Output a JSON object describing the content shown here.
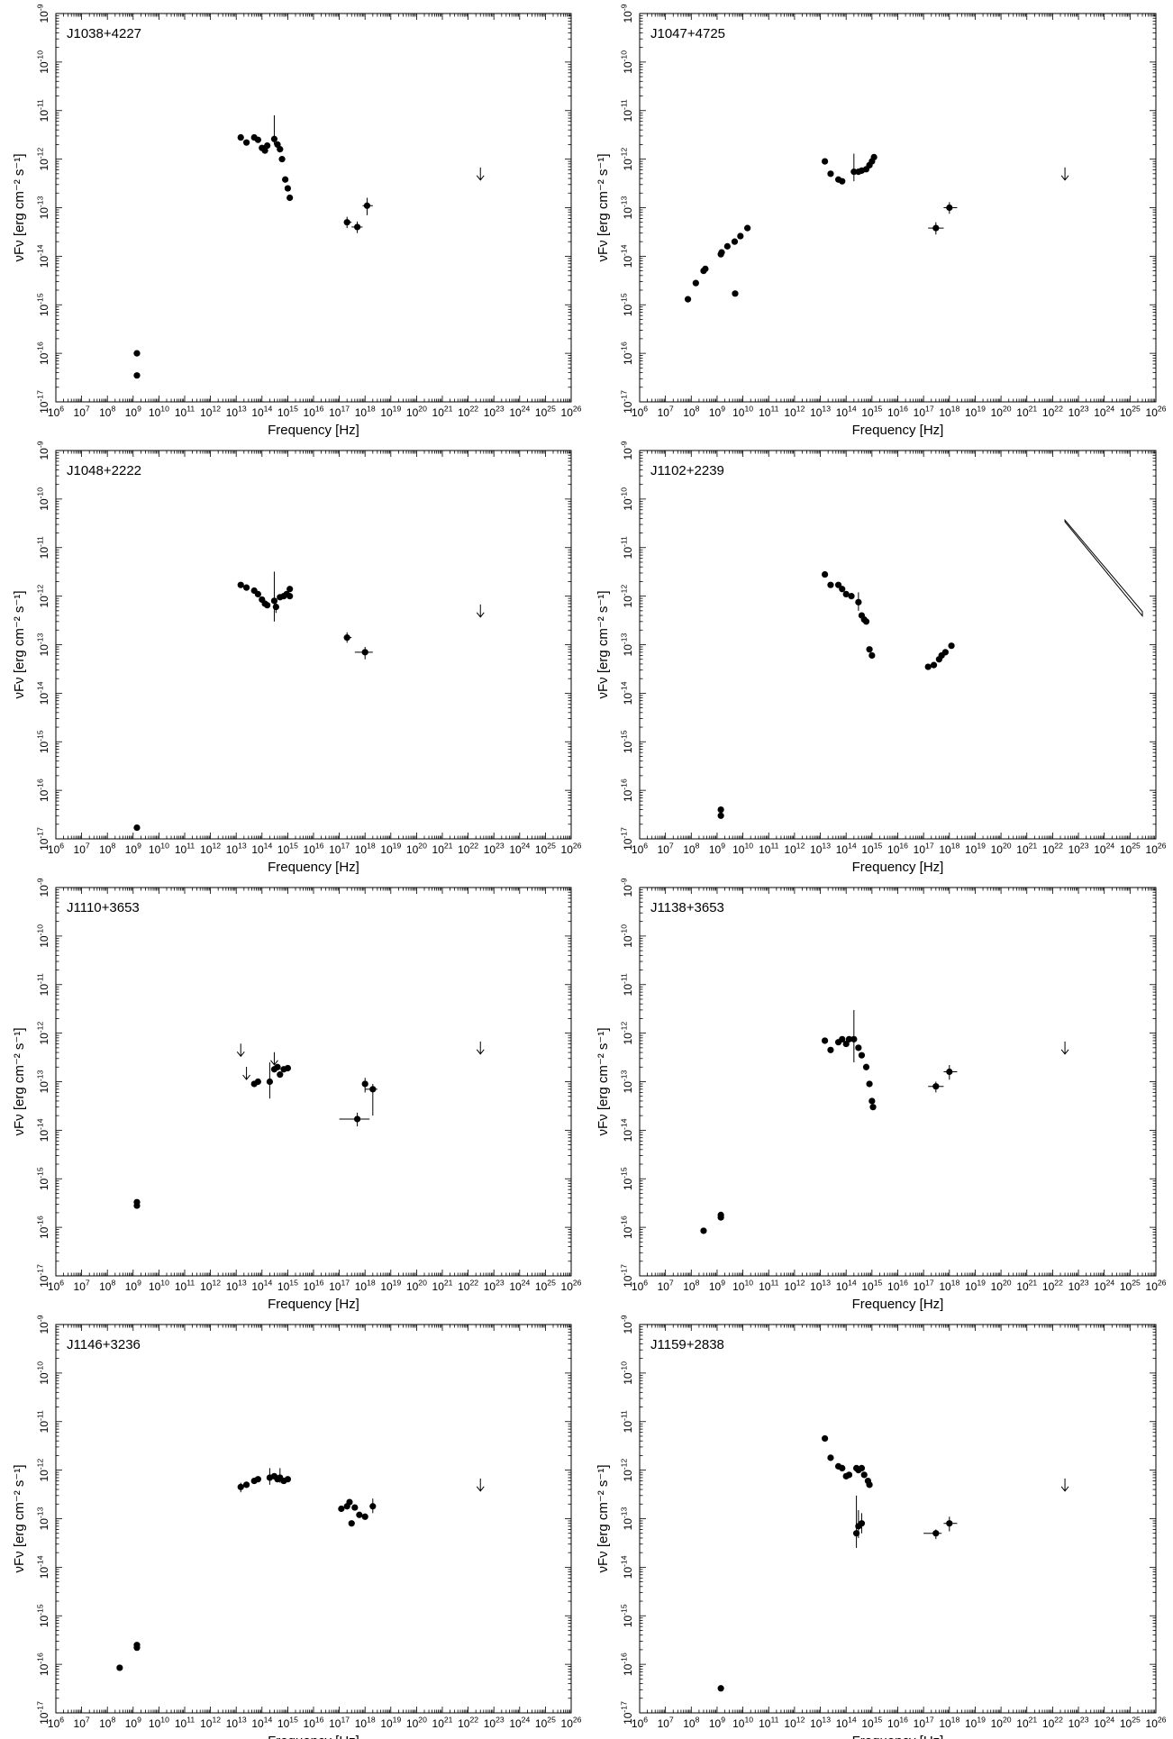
{
  "chart_data": [
    {
      "type": "scatter",
      "title": "J1038+4227",
      "xlabel": "Frequency [Hz]",
      "ylabel": "νFν [erg cm⁻² s⁻¹]",
      "xscale": "log",
      "yscale": "log",
      "xlim": [
        1000000.0,
        1e+26
      ],
      "ylim": [
        1e-17,
        1e-09
      ],
      "points": [
        {
          "x": 1400000000.0,
          "y": 1e-16
        },
        {
          "x": 1400000000.0,
          "y": 3.5e-17
        },
        {
          "x": 15000000000000.0,
          "y": 2.8e-12
        },
        {
          "x": 25000000000000.0,
          "y": 2.2e-12
        },
        {
          "x": 50000000000000.0,
          "y": 2.8e-12
        },
        {
          "x": 70000000000000.0,
          "y": 2.5e-12
        },
        {
          "x": 100000000000000.0,
          "y": 1.7e-12
        },
        {
          "x": 130000000000000.0,
          "y": 1.5e-12
        },
        {
          "x": 160000000000000.0,
          "y": 1.9e-12
        },
        {
          "x": 300000000000000.0,
          "y": 2.6e-12,
          "yerr": [
            2e-12,
            8e-12
          ]
        },
        {
          "x": 400000000000000.0,
          "y": 2e-12
        },
        {
          "x": 500000000000000.0,
          "y": 1.6e-12
        },
        {
          "x": 600000000000000.0,
          "y": 1e-12
        },
        {
          "x": 800000000000000.0,
          "y": 3.8e-13
        },
        {
          "x": 1000000000000000.0,
          "y": 2.5e-13
        },
        {
          "x": 1200000000000000.0,
          "y": 1.6e-13
        },
        {
          "x": 2e+17,
          "y": 5e-14,
          "xerr": [
            1.5e+17,
            3e+17
          ],
          "yerr": [
            3.8e-14,
            6.5e-14
          ]
        },
        {
          "x": 5e+17,
          "y": 4e-14,
          "xerr": [
            3e+17,
            8e+17
          ],
          "yerr": [
            3e-14,
            5.2e-14
          ]
        },
        {
          "x": 1.2e+18,
          "y": 1.1e-13,
          "xerr": [
            8e+17,
            2e+18
          ],
          "yerr": [
            7e-14,
            1.6e-13
          ]
        }
      ],
      "upper_limits": [
        {
          "x": 3e+22,
          "y": 5e-13
        }
      ]
    },
    {
      "type": "scatter",
      "title": "J1047+4725",
      "xlabel": "Frequency [Hz]",
      "ylabel": "νFν [erg cm⁻² s⁻¹]",
      "xscale": "log",
      "yscale": "log",
      "xlim": [
        1000000.0,
        1e+26
      ],
      "ylim": [
        1e-17,
        1e-09
      ],
      "points": [
        {
          "x": 74000000.0,
          "y": 1.3e-15
        },
        {
          "x": 150000000.0,
          "y": 2.8e-15
        },
        {
          "x": 300000000.0,
          "y": 5e-15
        },
        {
          "x": 350000000.0,
          "y": 5.5e-15
        },
        {
          "x": 1400000000.0,
          "y": 1.1e-14
        },
        {
          "x": 1500000000.0,
          "y": 1.2e-14
        },
        {
          "x": 2500000000.0,
          "y": 1.6e-14
        },
        {
          "x": 4800000000.0,
          "y": 2e-14
        },
        {
          "x": 5000000000.0,
          "y": 1.7e-15
        },
        {
          "x": 8000000000.0,
          "y": 2.6e-14
        },
        {
          "x": 15000000000.0,
          "y": 3.8e-14
        },
        {
          "x": 15000000000000.0,
          "y": 9e-13
        },
        {
          "x": 25000000000000.0,
          "y": 5e-13
        },
        {
          "x": 50000000000000.0,
          "y": 3.8e-13
        },
        {
          "x": 70000000000000.0,
          "y": 3.5e-13
        },
        {
          "x": 200000000000000.0,
          "y": 5.5e-13,
          "yerr": [
            3.5e-13,
            1.3e-12
          ]
        },
        {
          "x": 300000000000000.0,
          "y": 5.5e-13
        },
        {
          "x": 400000000000000.0,
          "y": 5.8e-13
        },
        {
          "x": 600000000000000.0,
          "y": 6.2e-13
        },
        {
          "x": 800000000000000.0,
          "y": 7.5e-13
        },
        {
          "x": 1000000000000000.0,
          "y": 9e-13
        },
        {
          "x": 1200000000000000.0,
          "y": 1.1e-12
        },
        {
          "x": 3e+17,
          "y": 3.8e-14,
          "xerr": [
            1.5e+17,
            6e+17
          ],
          "yerr": [
            2.8e-14,
            5e-14
          ]
        },
        {
          "x": 1e+18,
          "y": 1e-13,
          "xerr": [
            6e+17,
            2e+18
          ],
          "yerr": [
            7.5e-14,
            1.3e-13
          ]
        }
      ],
      "upper_limits": [
        {
          "x": 3e+22,
          "y": 5e-13
        }
      ]
    },
    {
      "type": "scatter",
      "title": "J1048+2222",
      "xlabel": "Frequency [Hz]",
      "ylabel": "νFν [erg cm⁻² s⁻¹]",
      "xscale": "log",
      "yscale": "log",
      "xlim": [
        1000000.0,
        1e+26
      ],
      "ylim": [
        1e-17,
        1e-09
      ],
      "points": [
        {
          "x": 1400000000.0,
          "y": 1.7e-17
        },
        {
          "x": 15000000000000.0,
          "y": 1.7e-12
        },
        {
          "x": 25000000000000.0,
          "y": 1.5e-12
        },
        {
          "x": 50000000000000.0,
          "y": 1.3e-12
        },
        {
          "x": 70000000000000.0,
          "y": 1.1e-12
        },
        {
          "x": 100000000000000.0,
          "y": 8.5e-13
        },
        {
          "x": 130000000000000.0,
          "y": 7e-13
        },
        {
          "x": 160000000000000.0,
          "y": 6.5e-13
        },
        {
          "x": 300000000000000.0,
          "y": 8e-13,
          "yerr": [
            3e-13,
            3.2e-12
          ]
        },
        {
          "x": 350000000000000.0,
          "y": 6e-13,
          "yerr": [
            4.5e-13,
            7.5e-13
          ]
        },
        {
          "x": 500000000000000.0,
          "y": 9.5e-13
        },
        {
          "x": 700000000000000.0,
          "y": 1e-12
        },
        {
          "x": 900000000000000.0,
          "y": 1.1e-12
        },
        {
          "x": 1200000000000000.0,
          "y": 1.4e-12
        },
        {
          "x": 1200000000000000.0,
          "y": 1e-12
        },
        {
          "x": 2e+17,
          "y": 1.4e-13,
          "xerr": [
            1.5e+17,
            3e+17
          ],
          "yerr": [
            1.1e-13,
            1.8e-13
          ]
        },
        {
          "x": 1e+18,
          "y": 7e-14,
          "xerr": [
            4e+17,
            2e+18
          ],
          "yerr": [
            5e-14,
            9e-14
          ]
        }
      ],
      "upper_limits": [
        {
          "x": 3e+22,
          "y": 5e-13
        }
      ]
    },
    {
      "type": "scatter",
      "title": "J1102+2239",
      "xlabel": "Frequency [Hz]",
      "ylabel": "νFν [erg cm⁻² s⁻¹]",
      "xscale": "log",
      "yscale": "log",
      "xlim": [
        1000000.0,
        1e+26
      ],
      "ylim": [
        1e-17,
        1e-09
      ],
      "points": [
        {
          "x": 1400000000.0,
          "y": 4e-17
        },
        {
          "x": 1400000000.0,
          "y": 3e-17
        },
        {
          "x": 15000000000000.0,
          "y": 2.8e-12
        },
        {
          "x": 25000000000000.0,
          "y": 1.7e-12
        },
        {
          "x": 50000000000000.0,
          "y": 1.7e-12
        },
        {
          "x": 70000000000000.0,
          "y": 1.4e-12
        },
        {
          "x": 100000000000000.0,
          "y": 1.1e-12
        },
        {
          "x": 160000000000000.0,
          "y": 1e-12
        },
        {
          "x": 300000000000000.0,
          "y": 7.5e-13,
          "yerr": [
            5e-13,
            1.2e-12
          ]
        },
        {
          "x": 400000000000000.0,
          "y": 4e-13
        },
        {
          "x": 500000000000000.0,
          "y": 3.3e-13
        },
        {
          "x": 600000000000000.0,
          "y": 3e-13
        },
        {
          "x": 800000000000000.0,
          "y": 8e-14
        },
        {
          "x": 1000000000000000.0,
          "y": 6e-14
        },
        {
          "x": 1.5e+17,
          "y": 3.5e-14
        },
        {
          "x": 2.5e+17,
          "y": 3.8e-14
        },
        {
          "x": 4e+17,
          "y": 5e-14
        },
        {
          "x": 5e+17,
          "y": 6e-14
        },
        {
          "x": 7e+17,
          "y": 7e-14
        },
        {
          "x": 1.2e+18,
          "y": 9.5e-14
        }
      ],
      "upper_limits": [],
      "bowtie": {
        "x": [
          3e+22,
          3e+25
        ],
        "upper": [
          3.7e-11,
          4.8e-13
        ],
        "lower": [
          3.4e-11,
          3.9e-13
        ]
      }
    },
    {
      "type": "scatter",
      "title": "J1110+3653",
      "xlabel": "Frequency [Hz]",
      "ylabel": "νFν [erg cm⁻² s⁻¹]",
      "xscale": "log",
      "yscale": "log",
      "xlim": [
        1000000.0,
        1e+26
      ],
      "ylim": [
        1e-17,
        1e-09
      ],
      "points": [
        {
          "x": 1400000000.0,
          "y": 3.3e-16
        },
        {
          "x": 1400000000.0,
          "y": 2.8e-16
        },
        {
          "x": 50000000000000.0,
          "y": 9e-14
        },
        {
          "x": 70000000000000.0,
          "y": 1e-13
        },
        {
          "x": 200000000000000.0,
          "y": 1e-13,
          "yerr": [
            4.5e-14,
            2.5e-13
          ]
        },
        {
          "x": 300000000000000.0,
          "y": 1.8e-13
        },
        {
          "x": 400000000000000.0,
          "y": 2e-13
        },
        {
          "x": 500000000000000.0,
          "y": 1.4e-13
        },
        {
          "x": 700000000000000.0,
          "y": 1.8e-13
        },
        {
          "x": 1000000000000000.0,
          "y": 1.9e-13
        },
        {
          "x": 5e+17,
          "y": 1.7e-14,
          "xerr": [
            1e+17,
            1.5e+18
          ],
          "yerr": [
            1.2e-14,
            2.3e-14
          ]
        },
        {
          "x": 1e+18,
          "y": 9e-14,
          "yerr": [
            6e-14,
            1.2e-13
          ]
        },
        {
          "x": 2e+18,
          "y": 7e-14,
          "xerr": [
            1e+18,
            3e+18
          ],
          "yerr": [
            2e-14,
            9e-14
          ]
        }
      ],
      "upper_limits": [
        {
          "x": 15000000000000.0,
          "y": 4.5e-13
        },
        {
          "x": 25000000000000.0,
          "y": 1.5e-13
        },
        {
          "x": 300000000000000.0,
          "y": 3e-13
        },
        {
          "x": 3e+22,
          "y": 5e-13
        }
      ]
    },
    {
      "type": "scatter",
      "title": "J1138+3653",
      "xlabel": "Frequency [Hz]",
      "ylabel": "νFν [erg cm⁻² s⁻¹]",
      "xscale": "log",
      "yscale": "log",
      "xlim": [
        1000000.0,
        1e+26
      ],
      "ylim": [
        1e-17,
        1e-09
      ],
      "points": [
        {
          "x": 300000000.0,
          "y": 8.5e-17
        },
        {
          "x": 1400000000.0,
          "y": 1.8e-16
        },
        {
          "x": 1400000000.0,
          "y": 1.6e-16
        },
        {
          "x": 15000000000000.0,
          "y": 7e-13
        },
        {
          "x": 25000000000000.0,
          "y": 4.5e-13
        },
        {
          "x": 50000000000000.0,
          "y": 6.5e-13
        },
        {
          "x": 70000000000000.0,
          "y": 7.5e-13
        },
        {
          "x": 100000000000000.0,
          "y": 6e-13
        },
        {
          "x": 130000000000000.0,
          "y": 7.5e-13
        },
        {
          "x": 200000000000000.0,
          "y": 7.5e-13,
          "yerr": [
            2.5e-13,
            3e-12
          ]
        },
        {
          "x": 300000000000000.0,
          "y": 5e-13
        },
        {
          "x": 400000000000000.0,
          "y": 3.5e-13
        },
        {
          "x": 600000000000000.0,
          "y": 2e-13
        },
        {
          "x": 800000000000000.0,
          "y": 9e-14
        },
        {
          "x": 1000000000000000.0,
          "y": 4e-14
        },
        {
          "x": 1100000000000000.0,
          "y": 3e-14
        },
        {
          "x": 3e+17,
          "y": 8e-14,
          "xerr": [
            1.5e+17,
            6e+17
          ],
          "yerr": [
            6e-14,
            1e-13
          ]
        },
        {
          "x": 1e+18,
          "y": 1.6e-13,
          "xerr": [
            6e+17,
            2e+18
          ],
          "yerr": [
            1.1e-13,
            2.2e-13
          ]
        }
      ],
      "upper_limits": [
        {
          "x": 3e+22,
          "y": 5e-13
        }
      ]
    },
    {
      "type": "scatter",
      "title": "J1146+3236",
      "xlabel": "Frequency [Hz]",
      "ylabel": "νFν [erg cm⁻² s⁻¹]",
      "xscale": "log",
      "yscale": "log",
      "xlim": [
        1000000.0,
        1e+26
      ],
      "ylim": [
        1e-17,
        1e-09
      ],
      "points": [
        {
          "x": 300000000.0,
          "y": 8.5e-17
        },
        {
          "x": 1400000000.0,
          "y": 2.5e-16
        },
        {
          "x": 1400000000.0,
          "y": 2.2e-16
        },
        {
          "x": 15000000000000.0,
          "y": 4.5e-13,
          "yerr": [
            3.5e-13,
            5.5e-13
          ]
        },
        {
          "x": 25000000000000.0,
          "y": 5e-13
        },
        {
          "x": 50000000000000.0,
          "y": 6e-13
        },
        {
          "x": 70000000000000.0,
          "y": 6.5e-13
        },
        {
          "x": 200000000000000.0,
          "y": 7e-13,
          "yerr": [
            5e-13,
            1.1e-12
          ]
        },
        {
          "x": 300000000000000.0,
          "y": 7.5e-13
        },
        {
          "x": 400000000000000.0,
          "y": 6.5e-13
        },
        {
          "x": 500000000000000.0,
          "y": 7e-13,
          "yerr": [
            5.5e-13,
            1.1e-12
          ]
        },
        {
          "x": 700000000000000.0,
          "y": 6e-13
        },
        {
          "x": 1000000000000000.0,
          "y": 6.5e-13
        },
        {
          "x": 1.2e+17,
          "y": 1.6e-13
        },
        {
          "x": 2e+17,
          "y": 1.8e-13
        },
        {
          "x": 2.5e+17,
          "y": 2.2e-13
        },
        {
          "x": 3e+17,
          "y": 8e-14
        },
        {
          "x": 4e+17,
          "y": 1.7e-13
        },
        {
          "x": 6e+17,
          "y": 1.2e-13
        },
        {
          "x": 1e+18,
          "y": 1.1e-13
        },
        {
          "x": 2e+18,
          "y": 1.8e-13,
          "yerr": [
            1.3e-13,
            2.6e-13
          ]
        }
      ],
      "upper_limits": [
        {
          "x": 3e+22,
          "y": 5e-13
        }
      ]
    },
    {
      "type": "scatter",
      "title": "J1159+2838",
      "xlabel": "Frequency [Hz]",
      "ylabel": "νFν [erg cm⁻² s⁻¹]",
      "xscale": "log",
      "yscale": "log",
      "xlim": [
        1000000.0,
        1e+26
      ],
      "ylim": [
        1e-17,
        1e-09
      ],
      "points": [
        {
          "x": 1400000000.0,
          "y": 3.2e-17
        },
        {
          "x": 15000000000000.0,
          "y": 4.5e-12
        },
        {
          "x": 25000000000000.0,
          "y": 1.8e-12
        },
        {
          "x": 50000000000000.0,
          "y": 1.2e-12
        },
        {
          "x": 70000000000000.0,
          "y": 1.1e-12
        },
        {
          "x": 100000000000000.0,
          "y": 7.5e-13
        },
        {
          "x": 130000000000000.0,
          "y": 8e-13
        },
        {
          "x": 250000000000000.0,
          "y": 1.1e-12
        },
        {
          "x": 300000000000000.0,
          "y": 1e-12
        },
        {
          "x": 400000000000000.0,
          "y": 1.1e-12
        },
        {
          "x": 500000000000000.0,
          "y": 8e-13
        },
        {
          "x": 700000000000000.0,
          "y": 6e-13
        },
        {
          "x": 800000000000000.0,
          "y": 5e-13
        },
        {
          "x": 250000000000000.0,
          "y": 5e-14,
          "yerr": [
            2.5e-14,
            3e-13
          ]
        },
        {
          "x": 300000000000000.0,
          "y": 7e-14,
          "yerr": [
            4e-14,
            1.5e-13
          ]
        },
        {
          "x": 400000000000000.0,
          "y": 8e-14,
          "yerr": [
            5e-14,
            1.3e-13
          ]
        },
        {
          "x": 3e+17,
          "y": 5e-14,
          "xerr": [
            1e+17,
            5e+17
          ],
          "yerr": [
            3.8e-14,
            6e-14
          ]
        },
        {
          "x": 1e+18,
          "y": 8e-14,
          "xerr": [
            6e+17,
            2e+18
          ],
          "yerr": [
            5.5e-14,
            1.1e-13
          ]
        }
      ],
      "upper_limits": [
        {
          "x": 3e+22,
          "y": 5e-13
        }
      ]
    }
  ]
}
